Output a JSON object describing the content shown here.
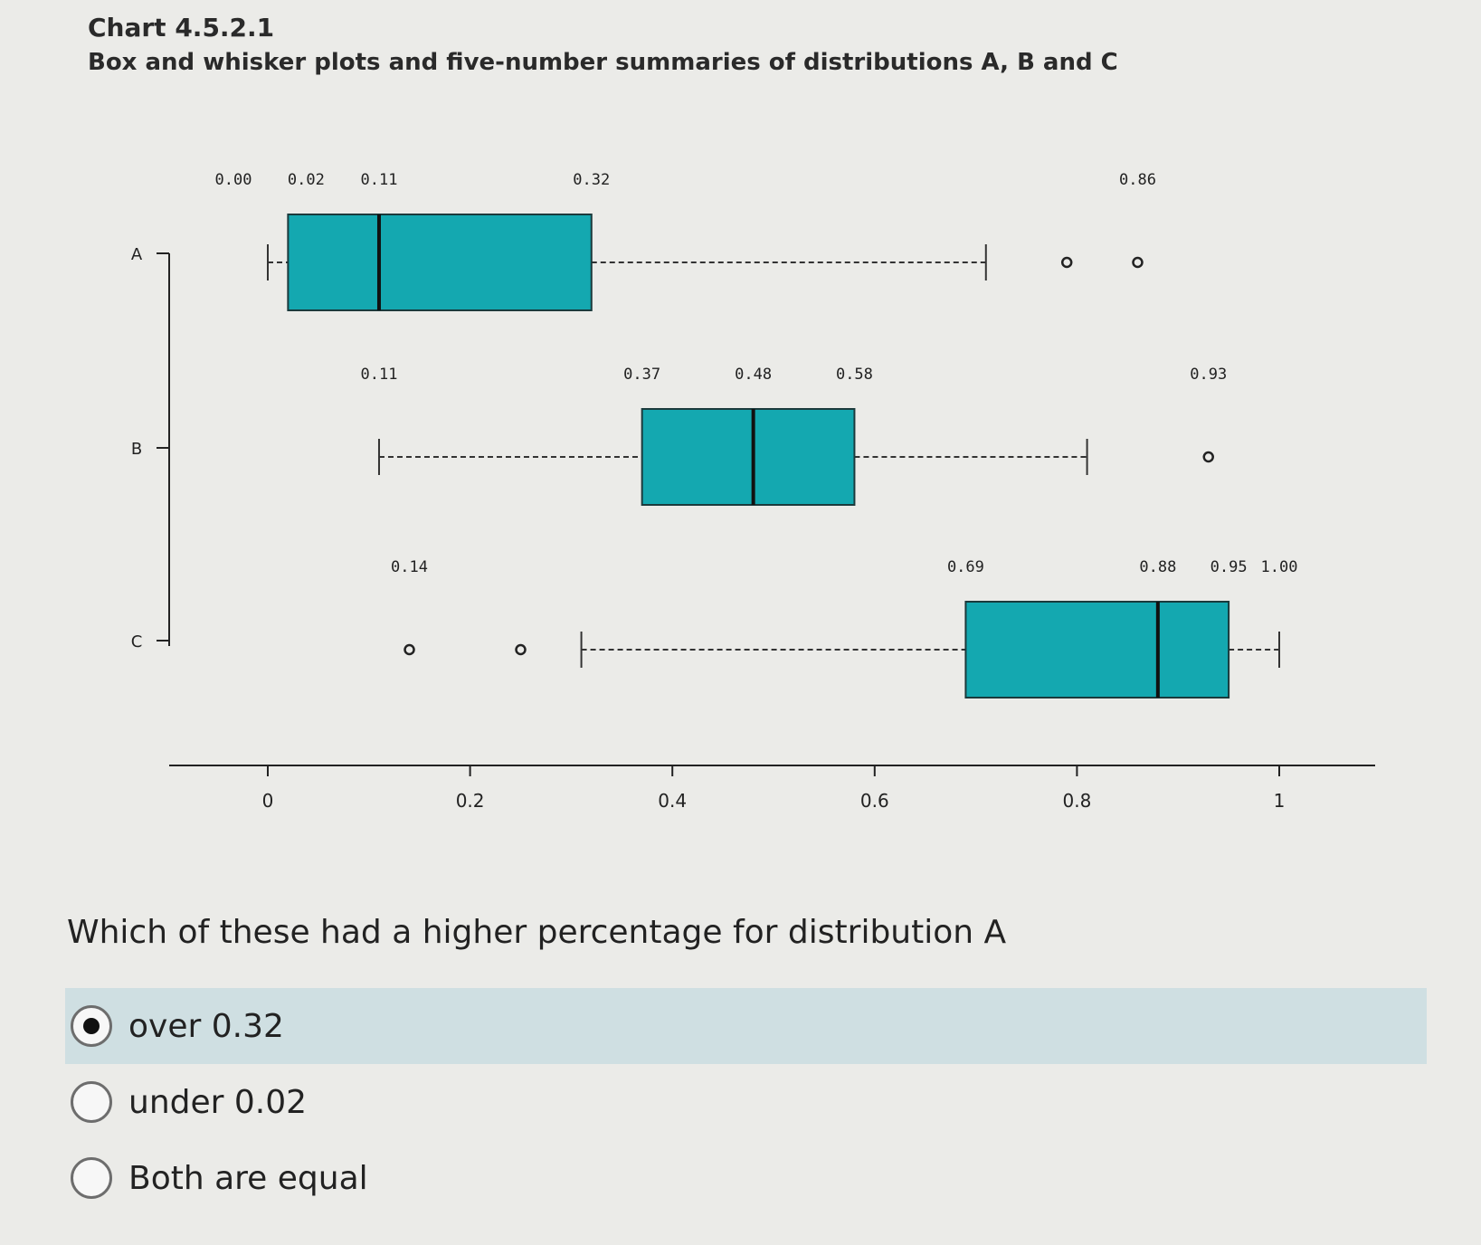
{
  "chart_title": "Chart 4.5.2.1",
  "chart_subtitle": "Box and whisker plots and five-number summaries of distributions A, B and C",
  "chart_data": {
    "type": "boxplot",
    "title": "Box and whisker plots and five-number summaries of distributions A, B and C",
    "xlim": [
      0,
      1
    ],
    "x_ticks": [
      0,
      0.2,
      0.4,
      0.6,
      0.8,
      1
    ],
    "x_tick_labels": [
      "0",
      "0.2",
      "0.4",
      "0.6",
      "0.8",
      "1"
    ],
    "box_color": "#14a8b0",
    "series": [
      {
        "name": "A",
        "whisker_low": 0.0,
        "q1": 0.02,
        "median": 0.11,
        "q3": 0.32,
        "whisker_high": 0.71,
        "outliers": [
          0.79,
          0.86
        ],
        "labels": [
          {
            "value": 0.0,
            "text": "0.00"
          },
          {
            "value": 0.02,
            "text": "0.02"
          },
          {
            "value": 0.11,
            "text": "0.11"
          },
          {
            "value": 0.32,
            "text": "0.32"
          },
          {
            "value": 0.86,
            "text": "0.86"
          }
        ]
      },
      {
        "name": "B",
        "whisker_low": 0.11,
        "q1": 0.37,
        "median": 0.48,
        "q3": 0.58,
        "whisker_high": 0.81,
        "outliers": [
          0.93
        ],
        "labels": [
          {
            "value": 0.11,
            "text": "0.11"
          },
          {
            "value": 0.37,
            "text": "0.37"
          },
          {
            "value": 0.48,
            "text": "0.48"
          },
          {
            "value": 0.58,
            "text": "0.58"
          },
          {
            "value": 0.93,
            "text": "0.93"
          }
        ]
      },
      {
        "name": "C",
        "whisker_low": 0.31,
        "q1": 0.69,
        "median": 0.88,
        "q3": 0.95,
        "whisker_high": 1.0,
        "outliers": [
          0.14,
          0.25
        ],
        "labels": [
          {
            "value": 0.14,
            "text": "0.14"
          },
          {
            "value": 0.69,
            "text": "0.69"
          },
          {
            "value": 0.88,
            "text": "0.88"
          },
          {
            "value": 0.95,
            "text": "0.95"
          },
          {
            "value": 1.0,
            "text": "1.00"
          }
        ]
      }
    ]
  },
  "question": "Which of these had a higher percentage for distribution A",
  "options": [
    {
      "label": "over 0.32",
      "selected": true
    },
    {
      "label": "under 0.02",
      "selected": false
    },
    {
      "label": "Both are equal",
      "selected": false
    }
  ]
}
